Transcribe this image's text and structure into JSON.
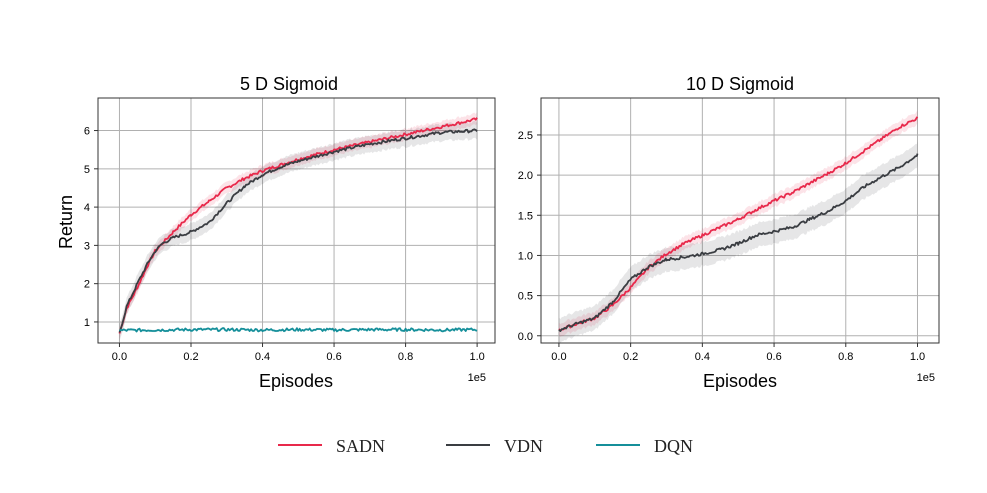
{
  "colors": {
    "SADN": "#e8294b",
    "VDN": "#3a3d42",
    "DQN": "#158f9a"
  },
  "legend": [
    "SADN",
    "VDN",
    "DQN"
  ],
  "chart_data": [
    {
      "type": "line",
      "title": "5 D Sigmoid",
      "xlabel": "Episodes",
      "ylabel": "Return",
      "x_offset_label": "1e5",
      "xlim": [
        -0.06,
        1.05
      ],
      "ylim": [
        0.45,
        6.85
      ],
      "xticks": [
        0.0,
        0.2,
        0.4,
        0.6,
        0.8,
        1.0
      ],
      "xtick_labels": [
        "0.0",
        "0.2",
        "0.4",
        "0.6",
        "0.8",
        "1.0"
      ],
      "yticks": [
        1,
        2,
        3,
        4,
        5,
        6
      ],
      "ytick_labels": [
        "1",
        "2",
        "3",
        "4",
        "5",
        "6"
      ],
      "grid": true,
      "series": [
        {
          "name": "SADN",
          "x": [
            0,
            0.02,
            0.05,
            0.08,
            0.1,
            0.12,
            0.15,
            0.2,
            0.25,
            0.3,
            0.35,
            0.4,
            0.45,
            0.5,
            0.6,
            0.7,
            0.8,
            0.9,
            1.0
          ],
          "y": [
            0.7,
            1.35,
            1.9,
            2.5,
            2.85,
            3.05,
            3.35,
            3.8,
            4.15,
            4.5,
            4.75,
            4.95,
            5.1,
            5.25,
            5.5,
            5.7,
            5.9,
            6.1,
            6.3
          ],
          "band": 0.15
        },
        {
          "name": "VDN",
          "x": [
            0,
            0.02,
            0.05,
            0.08,
            0.1,
            0.12,
            0.15,
            0.2,
            0.25,
            0.3,
            0.35,
            0.4,
            0.45,
            0.5,
            0.6,
            0.7,
            0.8,
            0.9,
            1.0
          ],
          "y": [
            0.7,
            1.4,
            2.0,
            2.55,
            2.85,
            3.05,
            3.2,
            3.35,
            3.6,
            4.1,
            4.55,
            4.85,
            5.05,
            5.2,
            5.45,
            5.65,
            5.8,
            5.95,
            6.0
          ],
          "band": 0.22
        },
        {
          "name": "DQN",
          "x": [
            0,
            0.1,
            0.2,
            0.3,
            0.4,
            0.5,
            0.6,
            0.7,
            0.8,
            0.9,
            1.0
          ],
          "y": [
            0.78,
            0.79,
            0.8,
            0.8,
            0.79,
            0.8,
            0.79,
            0.8,
            0.8,
            0.79,
            0.8
          ],
          "band": 0.03
        }
      ]
    },
    {
      "type": "line",
      "title": "10 D Sigmoid",
      "xlabel": "Episodes",
      "ylabel": "",
      "x_offset_label": "1e5",
      "xlim": [
        -0.05,
        1.06
      ],
      "ylim": [
        -0.09,
        2.96
      ],
      "xticks": [
        0.0,
        0.2,
        0.4,
        0.6,
        0.8,
        1.0
      ],
      "xtick_labels": [
        "0.0",
        "0.2",
        "0.4",
        "0.6",
        "0.8",
        "1.0"
      ],
      "yticks": [
        0.0,
        0.5,
        1.0,
        1.5,
        2.0,
        2.5
      ],
      "ytick_labels": [
        "0.0",
        "0.5",
        "1.0",
        "1.5",
        "2.0",
        "2.5"
      ],
      "grid": true,
      "series": [
        {
          "name": "SADN",
          "x": [
            0,
            0.05,
            0.1,
            0.15,
            0.2,
            0.25,
            0.3,
            0.35,
            0.4,
            0.45,
            0.5,
            0.55,
            0.6,
            0.65,
            0.7,
            0.75,
            0.8,
            0.85,
            0.9,
            0.95,
            1.0
          ],
          "y": [
            0.07,
            0.15,
            0.22,
            0.38,
            0.6,
            0.85,
            1.02,
            1.15,
            1.25,
            1.35,
            1.45,
            1.57,
            1.68,
            1.78,
            1.9,
            2.02,
            2.15,
            2.3,
            2.45,
            2.6,
            2.71
          ],
          "band": 0.08
        },
        {
          "name": "VDN",
          "x": [
            0,
            0.05,
            0.1,
            0.15,
            0.2,
            0.25,
            0.3,
            0.35,
            0.4,
            0.45,
            0.5,
            0.55,
            0.6,
            0.65,
            0.7,
            0.75,
            0.8,
            0.85,
            0.9,
            0.95,
            1.0
          ],
          "y": [
            0.07,
            0.15,
            0.22,
            0.42,
            0.7,
            0.86,
            0.95,
            0.98,
            1.02,
            1.07,
            1.15,
            1.25,
            1.3,
            1.35,
            1.45,
            1.55,
            1.68,
            1.85,
            1.98,
            2.1,
            2.25
          ],
          "band": 0.15
        }
      ]
    }
  ]
}
